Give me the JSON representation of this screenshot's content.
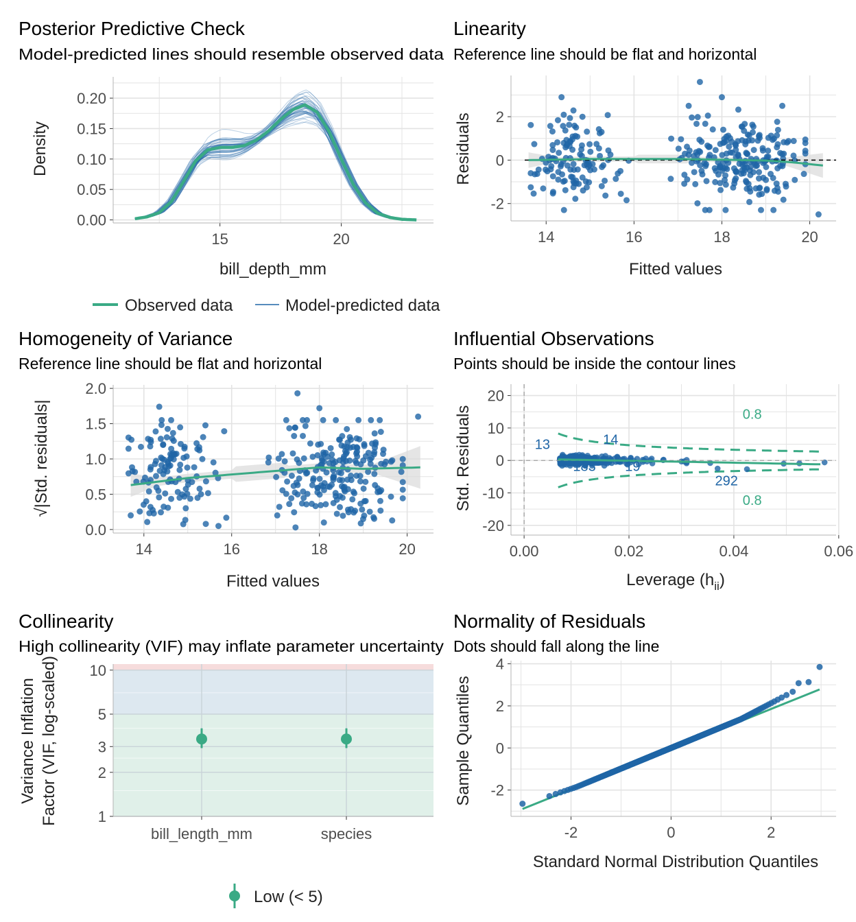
{
  "colors": {
    "blue": "#1f65a6",
    "green": "#3aaa85",
    "grid": "#e3e3e3",
    "axis_text": "#4d4d4d",
    "band_red": "#f6dcdc",
    "band_blue": "#dde8f0",
    "band_green": "#e0f0e9",
    "ci_fill": "#dadada"
  },
  "chart_data": [
    {
      "type": "line",
      "title": "Posterior Predictive Check",
      "subtitle": "Model-predicted lines should resemble observed data",
      "xlabel": "bill_depth_mm",
      "ylabel": "Density",
      "xlim": [
        10.6,
        23.8
      ],
      "ylim": [
        -0.005,
        0.235
      ],
      "xticks": [
        15,
        20
      ],
      "yticks": [
        0.0,
        0.05,
        0.1,
        0.15,
        0.2
      ],
      "ytick_labels": [
        "0.00",
        "0.05",
        "0.10",
        "0.15",
        "0.20"
      ],
      "legend": {
        "position": "bottom",
        "items": [
          "Observed data",
          "Model-predicted data"
        ]
      },
      "series": [
        {
          "name": "Observed data",
          "x": [
            11.5,
            12,
            12.5,
            13,
            13.5,
            14,
            14.5,
            15,
            15.5,
            16,
            16.5,
            17,
            17.5,
            18,
            18.5,
            19,
            19.5,
            20,
            20.5,
            21,
            21.5,
            22,
            22.5,
            23.1
          ],
          "values": [
            0.002,
            0.005,
            0.012,
            0.03,
            0.063,
            0.097,
            0.115,
            0.119,
            0.119,
            0.122,
            0.131,
            0.146,
            0.165,
            0.181,
            0.189,
            0.177,
            0.145,
            0.1,
            0.058,
            0.028,
            0.011,
            0.004,
            0.001,
            0.0
          ]
        },
        {
          "name": "Model-predicted data",
          "values_note_free": true
        }
      ]
    },
    {
      "type": "scatter",
      "title": "Linearity",
      "subtitle": "Reference line should be flat and horizontal",
      "xlabel": "Fitted values",
      "ylabel": "Residuals",
      "xlim": [
        13.2,
        20.6
      ],
      "ylim": [
        -2.8,
        3.9
      ],
      "xticks": [
        14,
        16,
        18,
        20
      ],
      "yticks": [
        -2,
        0,
        2
      ],
      "reference_line": 0,
      "smooth": {
        "x": [
          13.6,
          15,
          16,
          17,
          18,
          19,
          19.6,
          20.3
        ],
        "y": [
          0.0,
          0.05,
          0.05,
          0.05,
          0.02,
          -0.02,
          -0.1,
          -0.25
        ]
      },
      "outliers": [
        [
          14.35,
          2.9
        ],
        [
          17.5,
          3.6
        ],
        [
          18.0,
          2.9
        ],
        [
          20.2,
          -2.5
        ],
        [
          15.7,
          -1.55
        ]
      ]
    },
    {
      "type": "scatter",
      "title": "Homogeneity of Variance",
      "subtitle": "Reference line should be flat and horizontal",
      "xlabel": "Fitted values",
      "ylabel": "√|Std. residuals|",
      "xlim": [
        13.3,
        20.6
      ],
      "ylim": [
        -0.05,
        2.05
      ],
      "xticks": [
        14,
        16,
        18,
        20
      ],
      "yticks": [
        0.0,
        0.5,
        1.0,
        1.5,
        2.0
      ],
      "ytick_labels": [
        "0.0",
        "0.5",
        "1.0",
        "1.5",
        "2.0"
      ],
      "smooth": {
        "x": [
          13.7,
          15,
          16,
          17,
          18,
          19,
          20.3
        ],
        "y": [
          0.63,
          0.73,
          0.78,
          0.83,
          0.88,
          0.86,
          0.88
        ]
      },
      "outliers": [
        [
          14.35,
          1.74
        ],
        [
          17.5,
          1.93
        ],
        [
          18.0,
          1.72
        ],
        [
          20.25,
          1.6
        ],
        [
          13.7,
          0.2
        ],
        [
          15.7,
          0.05
        ]
      ]
    },
    {
      "type": "scatter",
      "title": "Influential Observations",
      "subtitle": "Points should be inside the contour lines",
      "xlabel": "Leverage (h",
      "xlabel_sub": "ii",
      "xlabel_end": ")",
      "ylabel": "Std. Residuals",
      "xlim": [
        -0.0025,
        0.0595
      ],
      "ylim": [
        -23,
        23.5
      ],
      "xticks": [
        0.0,
        0.02,
        0.04,
        0.06
      ],
      "xtick_labels": [
        "0.00",
        "0.02",
        "0.04",
        "0.06"
      ],
      "yticks": [
        -20,
        -10,
        0,
        10,
        20
      ],
      "contour_label": "0.8",
      "point_labels": [
        {
          "text": "13",
          "x": 0.0035,
          "y": 5
        },
        {
          "text": "14",
          "x": 0.0165,
          "y": 6.5
        },
        {
          "text": "183",
          "x": 0.0115,
          "y": -1.8
        },
        {
          "text": "19",
          "x": 0.0207,
          "y": -1.8
        },
        {
          "text": "292",
          "x": 0.0386,
          "y": -6.2
        }
      ]
    },
    {
      "type": "scatter",
      "title": "Collinearity",
      "subtitle": "High collinearity (VIF) may inflate parameter uncertainty",
      "xlabel": "",
      "ylabel": "Variance Inflation Factor (VIF, log-scaled)",
      "ylabel_lines": [
        "Variance Inflation",
        "Factor (VIF, log-scaled)"
      ],
      "log_y": true,
      "ylim": [
        1,
        11
      ],
      "yticks": [
        1,
        2,
        3,
        5,
        10
      ],
      "categories": [
        "bill_length_mm",
        "species"
      ],
      "values": [
        3.38,
        3.38
      ],
      "ci_low": [
        2.93,
        2.93
      ],
      "ci_high": [
        4.0,
        4.0
      ],
      "bands": [
        {
          "name": "low",
          "max": 5
        },
        {
          "name": "moderate",
          "max": 10
        },
        {
          "name": "high",
          "max": 11
        }
      ],
      "legend": {
        "position": "bottom",
        "items": [
          "Low (< 5)"
        ]
      }
    },
    {
      "type": "scatter",
      "title": "Normality of Residuals",
      "subtitle": "Dots should fall along the line",
      "xlabel": "Standard Normal Distribution Quantiles",
      "ylabel": "Sample Quantiles",
      "xlim": [
        -3.2,
        3.3
      ],
      "ylim": [
        -3.25,
        4.15
      ],
      "xticks": [
        -2,
        0,
        2
      ],
      "yticks": [
        -2,
        0,
        2,
        4
      ],
      "reference_line": {
        "x": [
          -2.97,
          2.97
        ],
        "y": [
          -2.9,
          2.78
        ]
      },
      "extremes": [
        [
          -2.97,
          -2.65
        ],
        [
          2.97,
          3.85
        ],
        [
          2.75,
          3.13
        ],
        [
          2.55,
          3.08
        ]
      ]
    }
  ]
}
